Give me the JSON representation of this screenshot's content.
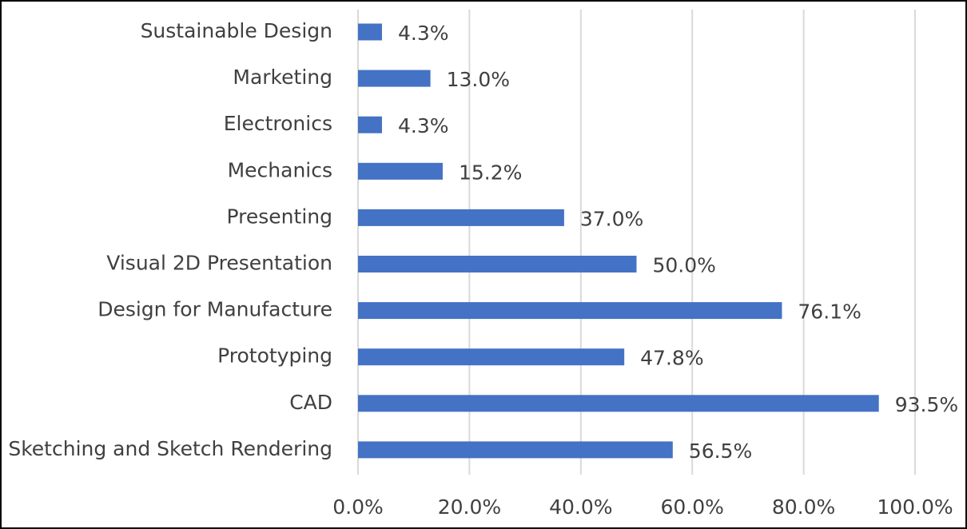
{
  "chart_data": {
    "type": "bar",
    "orientation": "horizontal",
    "categories": [
      "Sustainable Design",
      "Marketing",
      "Electronics",
      "Mechanics",
      "Presenting",
      "Visual 2D Presentation",
      "Design for Manufacture",
      "Prototyping",
      "CAD",
      "Sketching and Sketch Rendering"
    ],
    "values": [
      4.3,
      13.0,
      4.3,
      15.2,
      37.0,
      50.0,
      76.1,
      47.8,
      93.5,
      56.5
    ],
    "value_labels": [
      "4.3%",
      "13.0%",
      "4.3%",
      "15.2%",
      "37.0%",
      "50.0%",
      "76.1%",
      "47.8%",
      "93.5%",
      "56.5%"
    ],
    "color": "#4472c4",
    "xlim": [
      0,
      100
    ],
    "xticks": [
      {
        "value": 0,
        "label": "0.0%"
      },
      {
        "value": 20,
        "label": "20.0%"
      },
      {
        "value": 40,
        "label": "40.0%"
      },
      {
        "value": 60,
        "label": "60.0%"
      },
      {
        "value": 80,
        "label": "80.0%"
      },
      {
        "value": 100,
        "label": "100.0%"
      }
    ],
    "grid": true
  }
}
